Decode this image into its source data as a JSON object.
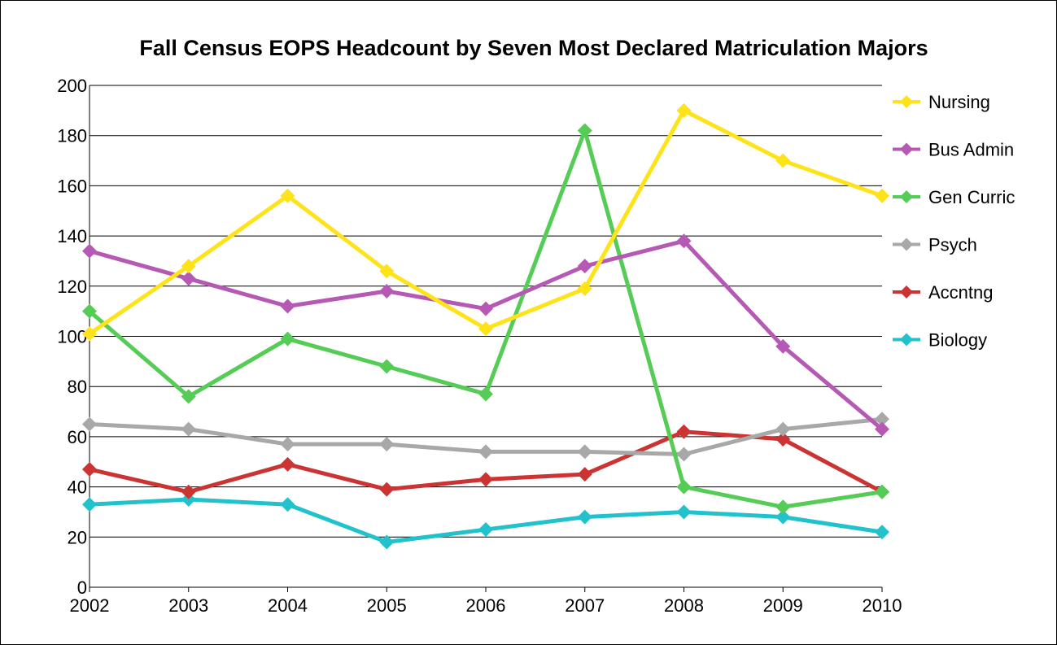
{
  "chart_data": {
    "type": "line",
    "title": "Fall Census EOPS Headcount by Seven Most Declared Matriculation Majors",
    "xlabel": "",
    "ylabel": "",
    "x": [
      "2002",
      "2003",
      "2004",
      "2005",
      "2006",
      "2007",
      "2008",
      "2009",
      "2010"
    ],
    "ylim": [
      0,
      200
    ],
    "yticks": [
      0,
      20,
      40,
      60,
      80,
      100,
      120,
      140,
      160,
      180,
      200
    ],
    "grid": "horizontal",
    "legend": "right",
    "series": [
      {
        "name": "Nursing",
        "color": "#ffe31a",
        "values": [
          101,
          128,
          156,
          126,
          103,
          119,
          190,
          170,
          156
        ]
      },
      {
        "name": "Bus Admin",
        "color": "#b659b5",
        "values": [
          134,
          123,
          112,
          118,
          111,
          128,
          138,
          96,
          63
        ]
      },
      {
        "name": "Gen Curric",
        "color": "#55cc55",
        "values": [
          110,
          76,
          99,
          88,
          77,
          182,
          40,
          32,
          38
        ]
      },
      {
        "name": "Psych",
        "color": "#a8a8a8",
        "values": [
          65,
          63,
          57,
          57,
          54,
          54,
          53,
          63,
          67
        ]
      },
      {
        "name": "Accntng",
        "color": "#cc3333",
        "values": [
          47,
          38,
          49,
          39,
          43,
          45,
          62,
          59,
          38
        ]
      },
      {
        "name": "Biology",
        "color": "#22c2cc",
        "values": [
          33,
          35,
          33,
          18,
          23,
          28,
          30,
          28,
          22
        ]
      }
    ]
  }
}
